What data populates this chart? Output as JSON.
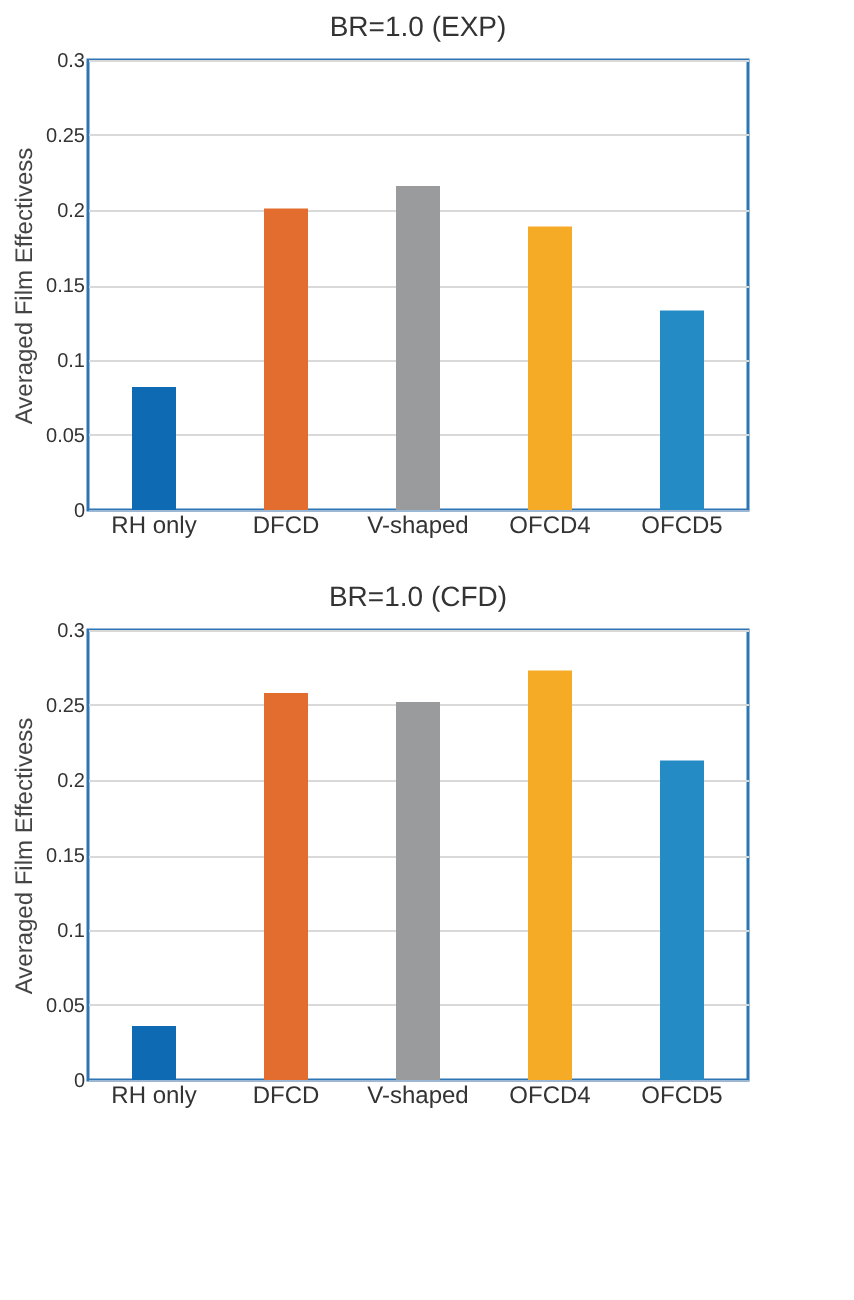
{
  "chart_data": [
    {
      "type": "bar",
      "title": "BR=1.0 (EXP)",
      "ylabel": "Averaged Film Effectivess",
      "categories": [
        "RH only",
        "DFCD",
        "V-shaped",
        "OFCD4",
        "OFCD5"
      ],
      "values": [
        0.082,
        0.201,
        0.216,
        0.189,
        0.133
      ],
      "colors": [
        "#0f6ab4",
        "#e36c2f",
        "#9a9b9d",
        "#f5ab25",
        "#248bc4"
      ],
      "ylim": [
        0,
        0.3
      ],
      "yticks": [
        0,
        0.05,
        0.1,
        0.15,
        0.2,
        0.25,
        0.3
      ],
      "grid": "y"
    },
    {
      "type": "bar",
      "title": "BR=1.0 (CFD)",
      "ylabel": "Averaged Film Effectivess",
      "categories": [
        "RH only",
        "DFCD",
        "V-shaped",
        "OFCD4",
        "OFCD5"
      ],
      "values": [
        0.036,
        0.258,
        0.252,
        0.273,
        0.213
      ],
      "colors": [
        "#0f6ab4",
        "#e36c2f",
        "#9a9b9d",
        "#f5ab25",
        "#248bc4"
      ],
      "ylim": [
        0,
        0.3
      ],
      "yticks": [
        0,
        0.05,
        0.1,
        0.15,
        0.2,
        0.25,
        0.3
      ],
      "grid": "y"
    }
  ]
}
